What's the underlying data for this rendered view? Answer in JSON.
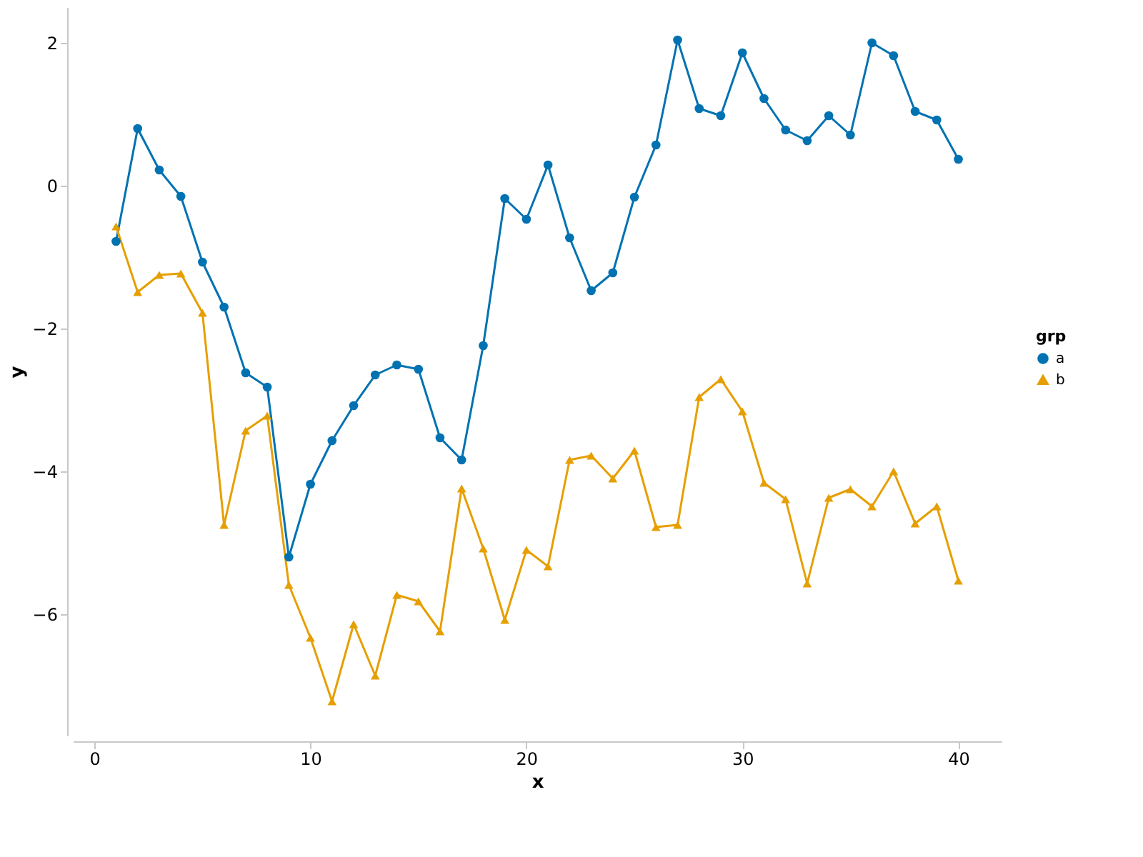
{
  "chart_data": {
    "type": "line",
    "xlabel": "x",
    "ylabel": "y",
    "legend_title": "grp",
    "legend": "right",
    "grid": false,
    "line_style": "solid",
    "x": [
      1,
      2,
      3,
      4,
      5,
      6,
      7,
      8,
      9,
      10,
      11,
      12,
      13,
      14,
      15,
      16,
      17,
      18,
      19,
      20,
      21,
      22,
      23,
      24,
      25,
      26,
      27,
      28,
      29,
      30,
      31,
      32,
      33,
      34,
      35,
      36,
      37,
      38,
      39,
      40
    ],
    "xlim": [
      -1,
      42
    ],
    "xticks": [
      0,
      10,
      20,
      30,
      40
    ],
    "ylim": [
      -7.7,
      2.5
    ],
    "yticks": [
      -6,
      -4,
      -2,
      0,
      2
    ],
    "series": [
      {
        "name": "a",
        "color": "#0072b2",
        "marker": "circle",
        "values": [
          -0.78,
          0.8,
          0.22,
          -0.15,
          -1.07,
          -1.7,
          -2.62,
          -2.82,
          -5.2,
          -4.18,
          -3.57,
          -3.08,
          -2.65,
          -2.51,
          -2.57,
          -3.53,
          -3.84,
          -2.24,
          -0.18,
          -0.47,
          0.29,
          -0.73,
          -1.47,
          -1.22,
          -0.16,
          0.57,
          2.04,
          1.08,
          0.98,
          1.86,
          1.22,
          0.78,
          0.63,
          0.98,
          0.71,
          2.0,
          1.82,
          1.04,
          0.92,
          0.37
        ]
      },
      {
        "name": "b",
        "color": "#e69f00",
        "marker": "triangle",
        "values": [
          -0.57,
          -1.49,
          -1.25,
          -1.23,
          -1.78,
          -4.75,
          -3.43,
          -3.22,
          -5.59,
          -6.33,
          -7.22,
          -6.14,
          -6.86,
          -5.73,
          -5.82,
          -6.24,
          -4.24,
          -5.08,
          -6.08,
          -5.1,
          -5.33,
          -3.84,
          -3.78,
          -4.1,
          -3.71,
          -4.78,
          -4.75,
          -2.96,
          -2.71,
          -3.16,
          -4.16,
          -4.39,
          -5.57,
          -4.37,
          -4.25,
          -4.49,
          -4.0,
          -4.73,
          -4.49,
          -5.53
        ]
      }
    ]
  }
}
